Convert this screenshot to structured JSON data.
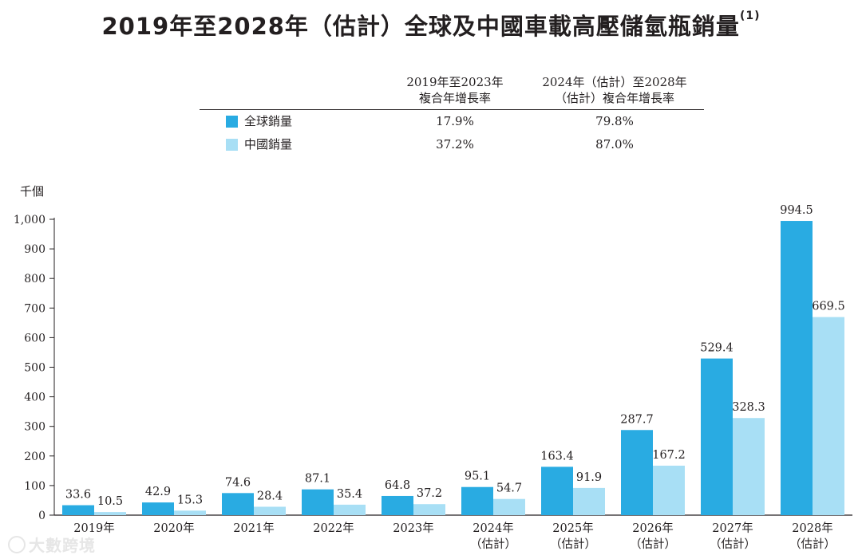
{
  "title": "2019年至2028年（估計）全球及中國車載高壓儲氫瓶銷量",
  "title_note": "(1)",
  "cagr_table": {
    "header_col1": [
      "2019年至2023年",
      "複合年增長率"
    ],
    "header_col2": [
      "2024年（估計）至2028年",
      "（估計）複合年增長率"
    ],
    "rows": [
      {
        "label": "全球銷量",
        "color": "#29abe2",
        "v1": "17.9%",
        "v2": "79.8%"
      },
      {
        "label": "中國銷量",
        "color": "#a8dff5",
        "v1": "37.2%",
        "v2": "87.0%"
      }
    ]
  },
  "watermark": "大數跨境",
  "chart_data": {
    "type": "bar",
    "ylabel": "千個",
    "ylim": [
      0,
      1000
    ],
    "yticks": [
      "0",
      "100",
      "200",
      "300",
      "400",
      "500",
      "600",
      "700",
      "800",
      "900",
      "1,000"
    ],
    "categories": [
      [
        "2019年"
      ],
      [
        "2020年"
      ],
      [
        "2021年"
      ],
      [
        "2022年"
      ],
      [
        "2023年"
      ],
      [
        "2024年",
        "（估計）"
      ],
      [
        "2025年",
        "（估計）"
      ],
      [
        "2026年",
        "（估計）"
      ],
      [
        "2027年",
        "（估計）"
      ],
      [
        "2028年",
        "（估計）"
      ]
    ],
    "series": [
      {
        "name": "全球銷量",
        "color": "#29abe2",
        "values": [
          33.6,
          42.9,
          74.6,
          87.1,
          64.8,
          95.1,
          163.4,
          287.7,
          529.4,
          994.5
        ]
      },
      {
        "name": "中國銷量",
        "color": "#a8dff5",
        "values": [
          10.5,
          15.3,
          28.4,
          35.4,
          37.2,
          54.7,
          91.9,
          167.2,
          328.3,
          669.5
        ]
      }
    ]
  }
}
